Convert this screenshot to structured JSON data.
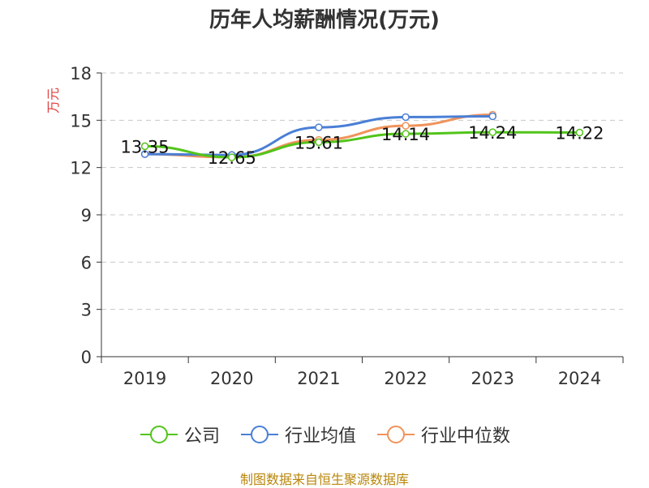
{
  "title": "历年人均薪酬情况(万元)",
  "source": "制图数据来自恒生聚源数据库",
  "chart_data": {
    "type": "line",
    "title": "历年人均薪酬情况(万元)",
    "xlabel": "",
    "ylabel": "万元",
    "categories": [
      "2019",
      "2020",
      "2021",
      "2022",
      "2023",
      "2024"
    ],
    "ylim": [
      0,
      18
    ],
    "yticks": [
      0,
      3,
      6,
      9,
      12,
      15,
      18
    ],
    "grid": true,
    "legend_position": "bottom",
    "series": [
      {
        "name": "公司",
        "color": "#52c41a",
        "values": [
          13.35,
          12.65,
          13.61,
          14.14,
          14.24,
          14.22
        ],
        "labels": [
          "13.35",
          "12.65",
          "13.61",
          "14.14",
          "14.24",
          "14.22"
        ]
      },
      {
        "name": "行业均值",
        "color": "#4a7fd6",
        "values": [
          12.85,
          12.8,
          14.55,
          15.2,
          15.25,
          null
        ]
      },
      {
        "name": "行业中位数",
        "color": "#f0935a",
        "values": [
          12.85,
          12.65,
          13.75,
          14.65,
          15.35,
          null
        ]
      }
    ]
  }
}
